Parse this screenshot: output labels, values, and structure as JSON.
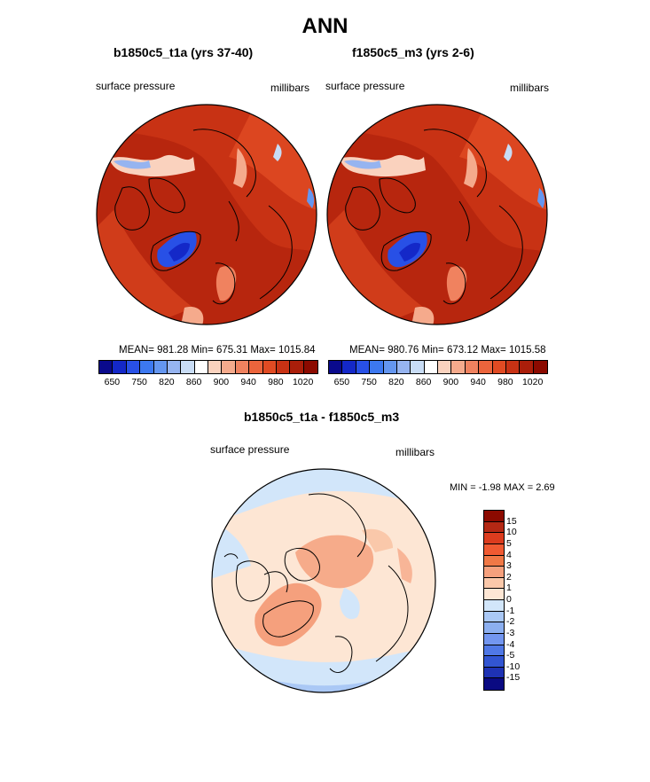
{
  "page": {
    "main_title": "ANN"
  },
  "panels": [
    {
      "title": "b1850c5_t1a (yrs 37-40)",
      "left_label": "surface pressure",
      "right_label": "millibars",
      "stats": "MEAN= 981.28  Min= 675.31  Max= 1015.84"
    },
    {
      "title": "f1850c5_m3 (yrs 2-6)",
      "left_label": "surface pressure",
      "right_label": "millibars",
      "stats": "MEAN= 980.76  Min= 673.12  Max= 1015.58"
    }
  ],
  "diff_panel": {
    "title": "b1850c5_t1a - f1850c5_m3",
    "left_label": "surface pressure",
    "right_label": "millibars",
    "stats": "MIN =  -1.98 MAX =   2.69"
  },
  "colorbar_abs": {
    "colors": [
      "#0a0a8c",
      "#1428c8",
      "#2850e6",
      "#3c78f0",
      "#6496f0",
      "#96b4f0",
      "#c8dcf5",
      "#ffffff",
      "#fad2be",
      "#f5aa8c",
      "#f0825f",
      "#eb643c",
      "#e14b23",
      "#c83214",
      "#aa1e0a",
      "#8c0a00"
    ],
    "labels": [
      "650",
      "750",
      "820",
      "860",
      "900",
      "940",
      "980",
      "1020"
    ]
  },
  "colorbar_diff": {
    "colors": [
      "#8c0a00",
      "#b42814",
      "#dc3c1e",
      "#f05a32",
      "#f07846",
      "#f5a07d",
      "#fac8aa",
      "#fde6d4",
      "#d2e6fa",
      "#aac8f5",
      "#8caff0",
      "#7396f0",
      "#5078e6",
      "#3255d2",
      "#1e32b4",
      "#0a0a82"
    ],
    "labels": [
      "15",
      "10",
      "5",
      "4",
      "3",
      "2",
      "1",
      "0",
      "-1",
      "-2",
      "-3",
      "-4",
      "-5",
      "-10",
      "-15"
    ]
  },
  "chart_data": [
    {
      "type": "heatmap",
      "title": "b1850c5_t1a (yrs 37-40)",
      "variable": "surface pressure",
      "units": "millibars",
      "mean": 981.28,
      "min": 675.31,
      "max": 1015.84,
      "projection": "polar-stereographic"
    },
    {
      "type": "heatmap",
      "title": "f1850c5_m3 (yrs 2-6)",
      "variable": "surface pressure",
      "units": "millibars",
      "mean": 980.76,
      "min": 673.12,
      "max": 1015.58,
      "projection": "polar-stereographic"
    },
    {
      "type": "heatmap",
      "title": "b1850c5_t1a - f1850c5_m3",
      "variable": "surface pressure",
      "units": "millibars",
      "min": -1.98,
      "max": 2.69,
      "projection": "polar-stereographic"
    }
  ]
}
